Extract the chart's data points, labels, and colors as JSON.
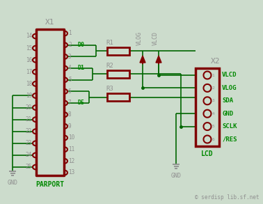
{
  "bg_color": "#ccdccc",
  "dark_red": "#800000",
  "green": "#006600",
  "gray": "#909090",
  "bright_green": "#008800",
  "figsize": [
    3.78,
    2.93
  ],
  "dpi": 100,
  "copyright": "© serdisp lib.sf.net",
  "x1_label": "X1",
  "x2_label": "X2",
  "parport_label": "PARPORT",
  "lcd_label": "LCD",
  "x2_pins": [
    "VLCD",
    "VLOG",
    "SDA",
    "GND",
    "SCLK",
    "/RES"
  ],
  "d_labels": [
    "D0",
    "D1",
    "D5"
  ],
  "r_labels": [
    "R1",
    "R2",
    "R3"
  ],
  "vlog_label": "VLOG",
  "vlcd_label": "VLCD",
  "gnd_label": "GND",
  "left_pins": [
    14,
    15,
    16,
    17,
    18,
    19,
    20,
    21,
    22,
    23,
    24,
    25
  ],
  "right_pins": [
    1,
    2,
    3,
    4,
    5,
    6,
    7,
    8,
    9,
    10,
    11,
    12,
    13
  ]
}
